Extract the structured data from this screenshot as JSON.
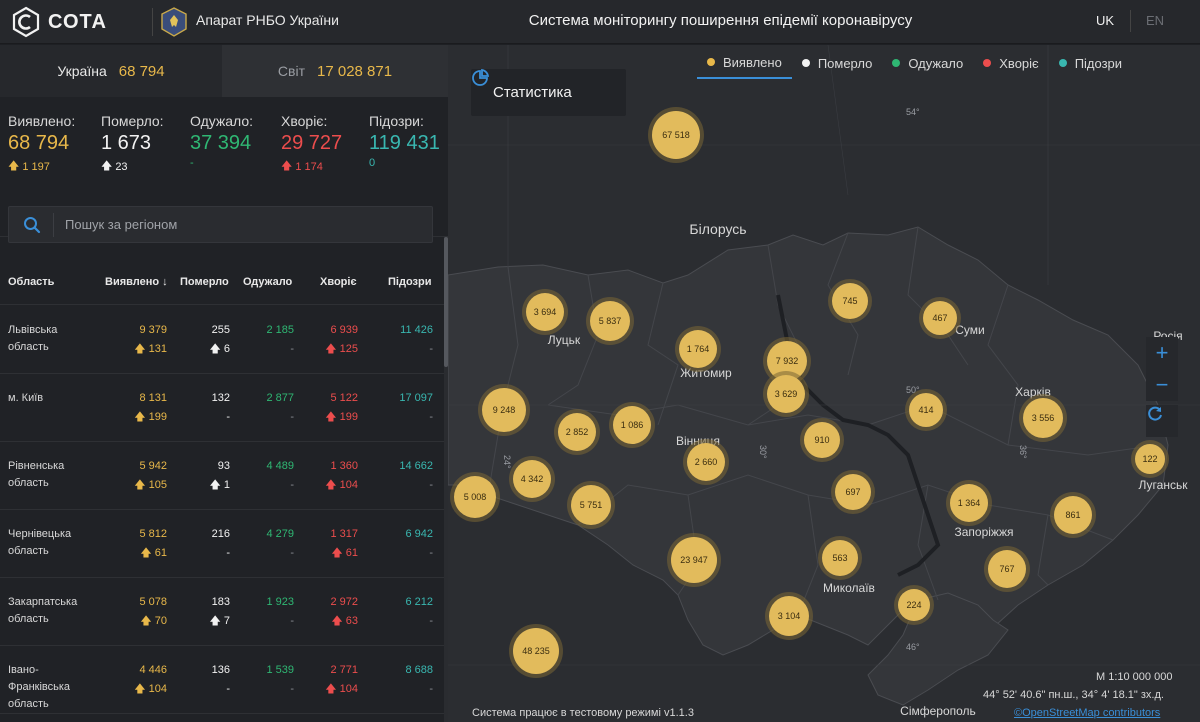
{
  "header": {
    "brand": "СОТА",
    "org": "Апарат РНБО України",
    "title": "Система моніторингу поширення епідемії коронавірусу",
    "lang_uk": "UK",
    "lang_en": "EN"
  },
  "tabs": {
    "ukraine_label": "Україна",
    "ukraine_value": "68 794",
    "world_label": "Світ",
    "world_value": "17 028 871"
  },
  "summary": {
    "detected": {
      "label": "Виявлено:",
      "value": "68 794",
      "delta": "1 197"
    },
    "died": {
      "label": "Померло:",
      "value": "1 673",
      "delta": "23"
    },
    "recovered": {
      "label": "Одужало:",
      "value": "37 394",
      "delta": "-"
    },
    "sick": {
      "label": "Хворіє:",
      "value": "29 727",
      "delta": "1 174"
    },
    "suspected": {
      "label": "Підозри:",
      "value": "119 431",
      "delta": "0"
    }
  },
  "search": {
    "placeholder": "Пошук за регіоном"
  },
  "table": {
    "headers": {
      "region": "Область",
      "detected": "Виявлено",
      "died": "Померло",
      "recovered": "Одужало",
      "sick": "Хворіє",
      "suspected": "Підозри"
    },
    "rows": [
      {
        "region": "Львівська область",
        "detected": "9 379",
        "detected_d": "131",
        "died": "255",
        "died_d": "6",
        "recovered": "2 185",
        "recovered_d": "-",
        "sick": "6 939",
        "sick_d": "125",
        "suspected": "11 426",
        "suspected_d": "-"
      },
      {
        "region": "м. Київ",
        "detected": "8 131",
        "detected_d": "199",
        "died": "132",
        "died_d": "-",
        "recovered": "2 877",
        "recovered_d": "-",
        "sick": "5 122",
        "sick_d": "199",
        "suspected": "17 097",
        "suspected_d": "-"
      },
      {
        "region": "Рівненська область",
        "detected": "5 942",
        "detected_d": "105",
        "died": "93",
        "died_d": "1",
        "recovered": "4 489",
        "recovered_d": "-",
        "sick": "1 360",
        "sick_d": "104",
        "suspected": "14 662",
        "suspected_d": "-"
      },
      {
        "region": "Чернівецька область",
        "detected": "5 812",
        "detected_d": "61",
        "died": "216",
        "died_d": "-",
        "recovered": "4 279",
        "recovered_d": "-",
        "sick": "1 317",
        "sick_d": "61",
        "suspected": "6 942",
        "suspected_d": "-"
      },
      {
        "region": "Закарпатська область",
        "detected": "5 078",
        "detected_d": "70",
        "died": "183",
        "died_d": "7",
        "recovered": "1 923",
        "recovered_d": "-",
        "sick": "2 972",
        "sick_d": "63",
        "suspected": "6 212",
        "suspected_d": "-"
      },
      {
        "region": "Івано-Франківська область",
        "detected": "4 446",
        "detected_d": "104",
        "died": "136",
        "died_d": "-",
        "recovered": "1 539",
        "recovered_d": "-",
        "sick": "2 771",
        "sick_d": "104",
        "suspected": "8 688",
        "suspected_d": "-"
      }
    ]
  },
  "map": {
    "stat_button": "Статистика",
    "filters": [
      "Виявлено",
      "Померло",
      "Одужало",
      "Хворіє",
      "Підозри"
    ],
    "filter_colors": [
      "#e8b84a",
      "#f2f2f2",
      "#2fb773",
      "#ec4d4d",
      "#39b7b0"
    ],
    "scale": "М 1:10 000 000",
    "coords": "44° 52' 40.6\" пн.ш., 34° 4' 18.1\" зх.д.",
    "footnote": "Система працює в тестовому режимі v1.1.3",
    "osm": "©OpenStreetMap contributors",
    "cities": {
      "belarus": "Білорусь",
      "lutsk": "Луцьк",
      "zhytomyr": "Житомир",
      "sumy": "Суми",
      "kharkiv": "Харків",
      "vinnytsia": "Вінниця",
      "luhansk": "Луганськ",
      "zaporizhzhia": "Запоріжжя",
      "mykolaiv": "Миколаїв",
      "simferopol": "Сімферополь",
      "russia": "Росія"
    },
    "grid": [
      "54°",
      "50°",
      "46°",
      "24°",
      "30°",
      "36°"
    ],
    "clusters": [
      "67 518",
      "3 694",
      "5 837",
      "1 764",
      "7 932",
      "3 629",
      "745",
      "467",
      "9 248",
      "2 852",
      "1 086",
      "414",
      "3 556",
      "910",
      "2 660",
      "4 342",
      "5 008",
      "5 751",
      "697",
      "1 364",
      "861",
      "122",
      "23 947",
      "563",
      "767",
      "224",
      "3 104",
      "48 235"
    ]
  }
}
